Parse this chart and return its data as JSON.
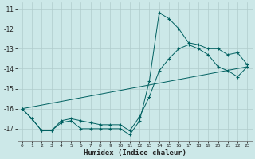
{
  "xlabel": "Humidex (Indice chaleur)",
  "bg_color": "#cce8e8",
  "grid_color": "#b0cccc",
  "line_color": "#006060",
  "xlim": [
    -0.5,
    23.5
  ],
  "ylim": [
    -17.6,
    -10.7
  ],
  "yticks": [
    -17,
    -16,
    -15,
    -14,
    -13,
    -12,
    -11
  ],
  "xticks": [
    0,
    1,
    2,
    3,
    4,
    5,
    6,
    7,
    8,
    9,
    10,
    11,
    12,
    13,
    14,
    15,
    16,
    17,
    18,
    19,
    20,
    21,
    22,
    23
  ],
  "series1_x": [
    0,
    1,
    2,
    3,
    4,
    5,
    6,
    7,
    8,
    9,
    10,
    11,
    12,
    13,
    14,
    15,
    16,
    17,
    18,
    19,
    20,
    21,
    22,
    23
  ],
  "series1_y": [
    -16.0,
    -16.5,
    -17.1,
    -17.1,
    -16.7,
    -16.6,
    -17.0,
    -17.0,
    -17.0,
    -17.0,
    -17.0,
    -17.3,
    -16.6,
    -14.6,
    -11.2,
    -11.5,
    -12.0,
    -12.7,
    -12.8,
    -13.0,
    -13.0,
    -13.3,
    -13.2,
    -13.8
  ],
  "series2_x": [
    0,
    1,
    2,
    3,
    4,
    5,
    6,
    7,
    8,
    9,
    10,
    11,
    12,
    13,
    14,
    15,
    16,
    17,
    18,
    19,
    20,
    21,
    22,
    23
  ],
  "series2_y": [
    -16.0,
    -16.5,
    -17.1,
    -17.1,
    -16.6,
    -16.5,
    -16.6,
    -16.7,
    -16.8,
    -16.8,
    -16.8,
    -17.1,
    -16.4,
    -15.4,
    -14.1,
    -13.5,
    -13.0,
    -12.8,
    -13.0,
    -13.3,
    -13.9,
    -14.1,
    -14.4,
    -13.9
  ],
  "series3_x": [
    0,
    23
  ],
  "series3_y": [
    -16.0,
    -13.9
  ]
}
